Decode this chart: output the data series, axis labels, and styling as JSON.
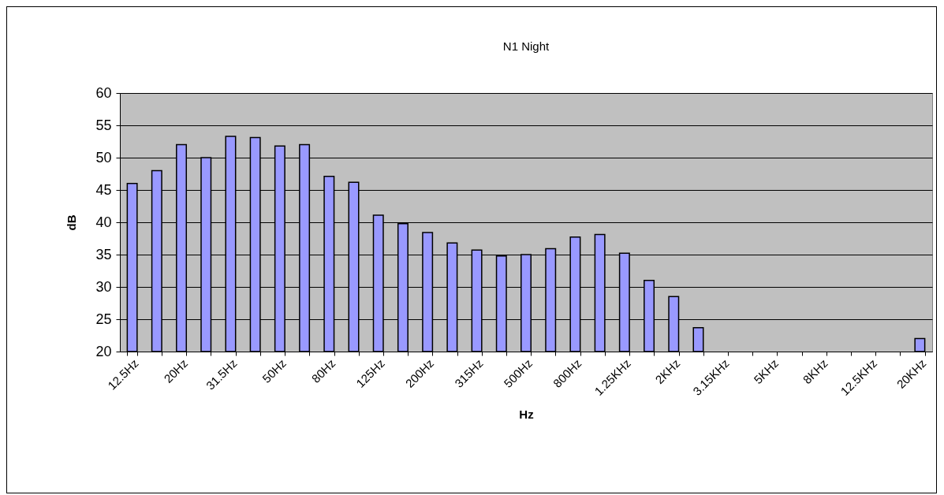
{
  "chart_data": {
    "type": "bar",
    "title": "N1 Night",
    "xlabel": "Hz",
    "ylabel": "dB",
    "categories": [
      "12.5Hz",
      null,
      "20Hz",
      null,
      "31.5Hz",
      null,
      "50Hz",
      null,
      "80Hz",
      null,
      "125Hz",
      null,
      "200Hz",
      null,
      "315Hz",
      null,
      "500Hz",
      null,
      "800Hz",
      null,
      "1.25KHz",
      null,
      "2KHz",
      null,
      "3.15KHz",
      null,
      "5KHz",
      null,
      "8KHz",
      null,
      "12.5KHz",
      null,
      "20KHz"
    ],
    "values": [
      46,
      48,
      52,
      50,
      53.3,
      53.1,
      51.8,
      52,
      47.1,
      46.2,
      41.1,
      39.8,
      38.4,
      36.8,
      35.7,
      34.8,
      35,
      35.9,
      37.7,
      38.1,
      35.2,
      31,
      28.5,
      23.7,
      null,
      null,
      null,
      null,
      null,
      null,
      null,
      null,
      22
    ],
    "color": "#9999ff",
    "ylim": [
      20,
      60
    ],
    "yticks": [
      20,
      25,
      30,
      35,
      40,
      45,
      50,
      55,
      60
    ],
    "grid": true
  }
}
